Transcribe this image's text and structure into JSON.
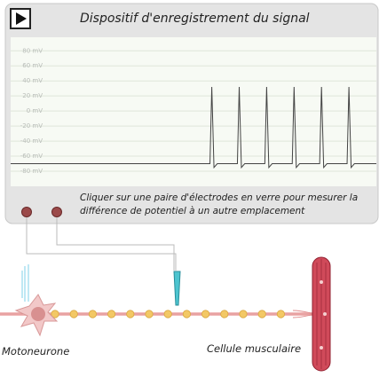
{
  "chart_data": {
    "type": "line",
    "title": "Dispositif d'enregistrement du signal",
    "x": [
      0,
      54.5,
      55,
      55.6,
      56.5,
      62,
      62.5,
      63.1,
      64,
      69.5,
      70,
      70.6,
      71.5,
      77,
      77.5,
      78.1,
      79,
      84.5,
      85,
      85.6,
      86.5,
      92,
      92.5,
      93.1,
      94,
      100
    ],
    "values": [
      -70,
      -70,
      32,
      -75,
      -70,
      -70,
      32,
      -75,
      -70,
      -70,
      32,
      -75,
      -70,
      -70,
      32,
      -75,
      -70,
      -70,
      32,
      -75,
      -70,
      -70,
      32,
      -75,
      -70,
      -70
    ],
    "xlim": [
      0,
      100
    ],
    "ylim": [
      -100,
      98
    ],
    "yticks": [
      {
        "value": 80,
        "label": "80 mV"
      },
      {
        "value": 60,
        "label": "60 mV"
      },
      {
        "value": 40,
        "label": "40 mV"
      },
      {
        "value": 20,
        "label": "20 mV"
      },
      {
        "value": 0,
        "label": "0 mV"
      },
      {
        "value": -20,
        "label": "-20 mV"
      },
      {
        "value": -40,
        "label": "-40 mV"
      },
      {
        "value": -60,
        "label": "-60 mV"
      },
      {
        "value": -80,
        "label": "-80 mV"
      }
    ],
    "grid": true,
    "color": "#444444"
  },
  "instructions": [
    "Cliquer sur une paire d'électrodes en verre pour mesurer la",
    "différence de potentiel à un autre emplacement"
  ],
  "labels": {
    "neuron": "Motoneurone",
    "muscle": "Cellule musculaire"
  }
}
